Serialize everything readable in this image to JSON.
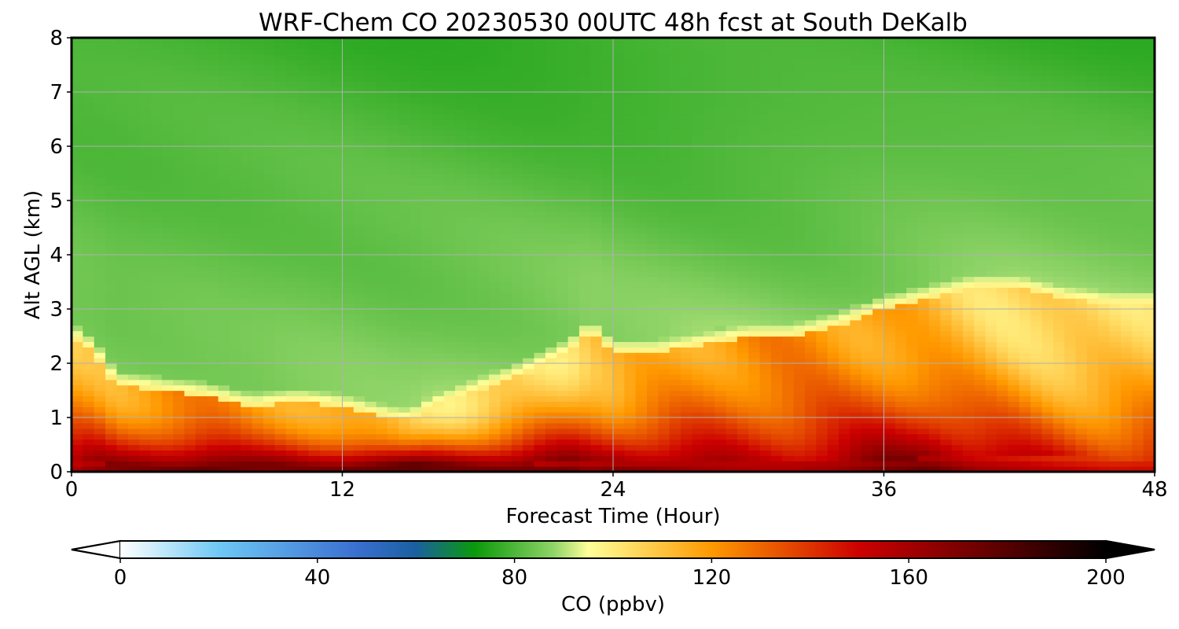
{
  "chart_data": {
    "type": "heatmap",
    "title": "WRF-Chem CO  20230530 00UTC 48h fcst at South DeKalb",
    "xlabel": "Forecast Time (Hour)",
    "ylabel": "Alt AGL (km)",
    "xlim": [
      0,
      48
    ],
    "ylim": [
      0,
      8
    ],
    "xticks": [
      0,
      12,
      24,
      36,
      48
    ],
    "yticks": [
      0,
      1,
      2,
      3,
      4,
      5,
      6,
      7,
      8
    ],
    "grid": true,
    "colorbar": {
      "label": "CO  (ppbv)",
      "range": [
        0,
        200
      ],
      "ticks": [
        0,
        40,
        80,
        120,
        160,
        200
      ],
      "extend": "both",
      "stops": [
        {
          "v": 0,
          "c": "#ffffff"
        },
        {
          "v": 20,
          "c": "#6ec8f5"
        },
        {
          "v": 48,
          "c": "#3a6fd0"
        },
        {
          "v": 60,
          "c": "#1a60a0"
        },
        {
          "v": 72,
          "c": "#0a9a0a"
        },
        {
          "v": 88,
          "c": "#90d468"
        },
        {
          "v": 95,
          "c": "#ffff99"
        },
        {
          "v": 120,
          "c": "#ff9900"
        },
        {
          "v": 150,
          "c": "#cc0000"
        },
        {
          "v": 175,
          "c": "#6a0000"
        },
        {
          "v": 200,
          "c": "#000000"
        }
      ]
    },
    "x": [
      0,
      1,
      2,
      4,
      6,
      8,
      10,
      12,
      14,
      15,
      16,
      18,
      20,
      22,
      23,
      24,
      26,
      28,
      30,
      32,
      34,
      36,
      38,
      40,
      42,
      44,
      46,
      48
    ],
    "boundary_layer_top_km": [
      2.5,
      2.2,
      1.6,
      1.5,
      1.4,
      1.2,
      1.3,
      1.2,
      1.0,
      0.95,
      1.2,
      1.5,
      1.8,
      2.2,
      2.6,
      2.2,
      2.2,
      2.35,
      2.5,
      2.5,
      2.7,
      3.0,
      3.2,
      3.4,
      3.4,
      3.2,
      3.1,
      3.1
    ],
    "surface_co_ppbv": [
      160,
      170,
      175,
      180,
      185,
      180,
      180,
      185,
      195,
      200,
      190,
      185,
      180,
      180,
      170,
      175,
      170,
      165,
      160,
      160,
      165,
      175,
      180,
      165,
      160,
      155,
      150,
      150
    ],
    "free_troposphere_co_ppbv": {
      "near_pbl": 88,
      "top_8km": 78
    }
  }
}
